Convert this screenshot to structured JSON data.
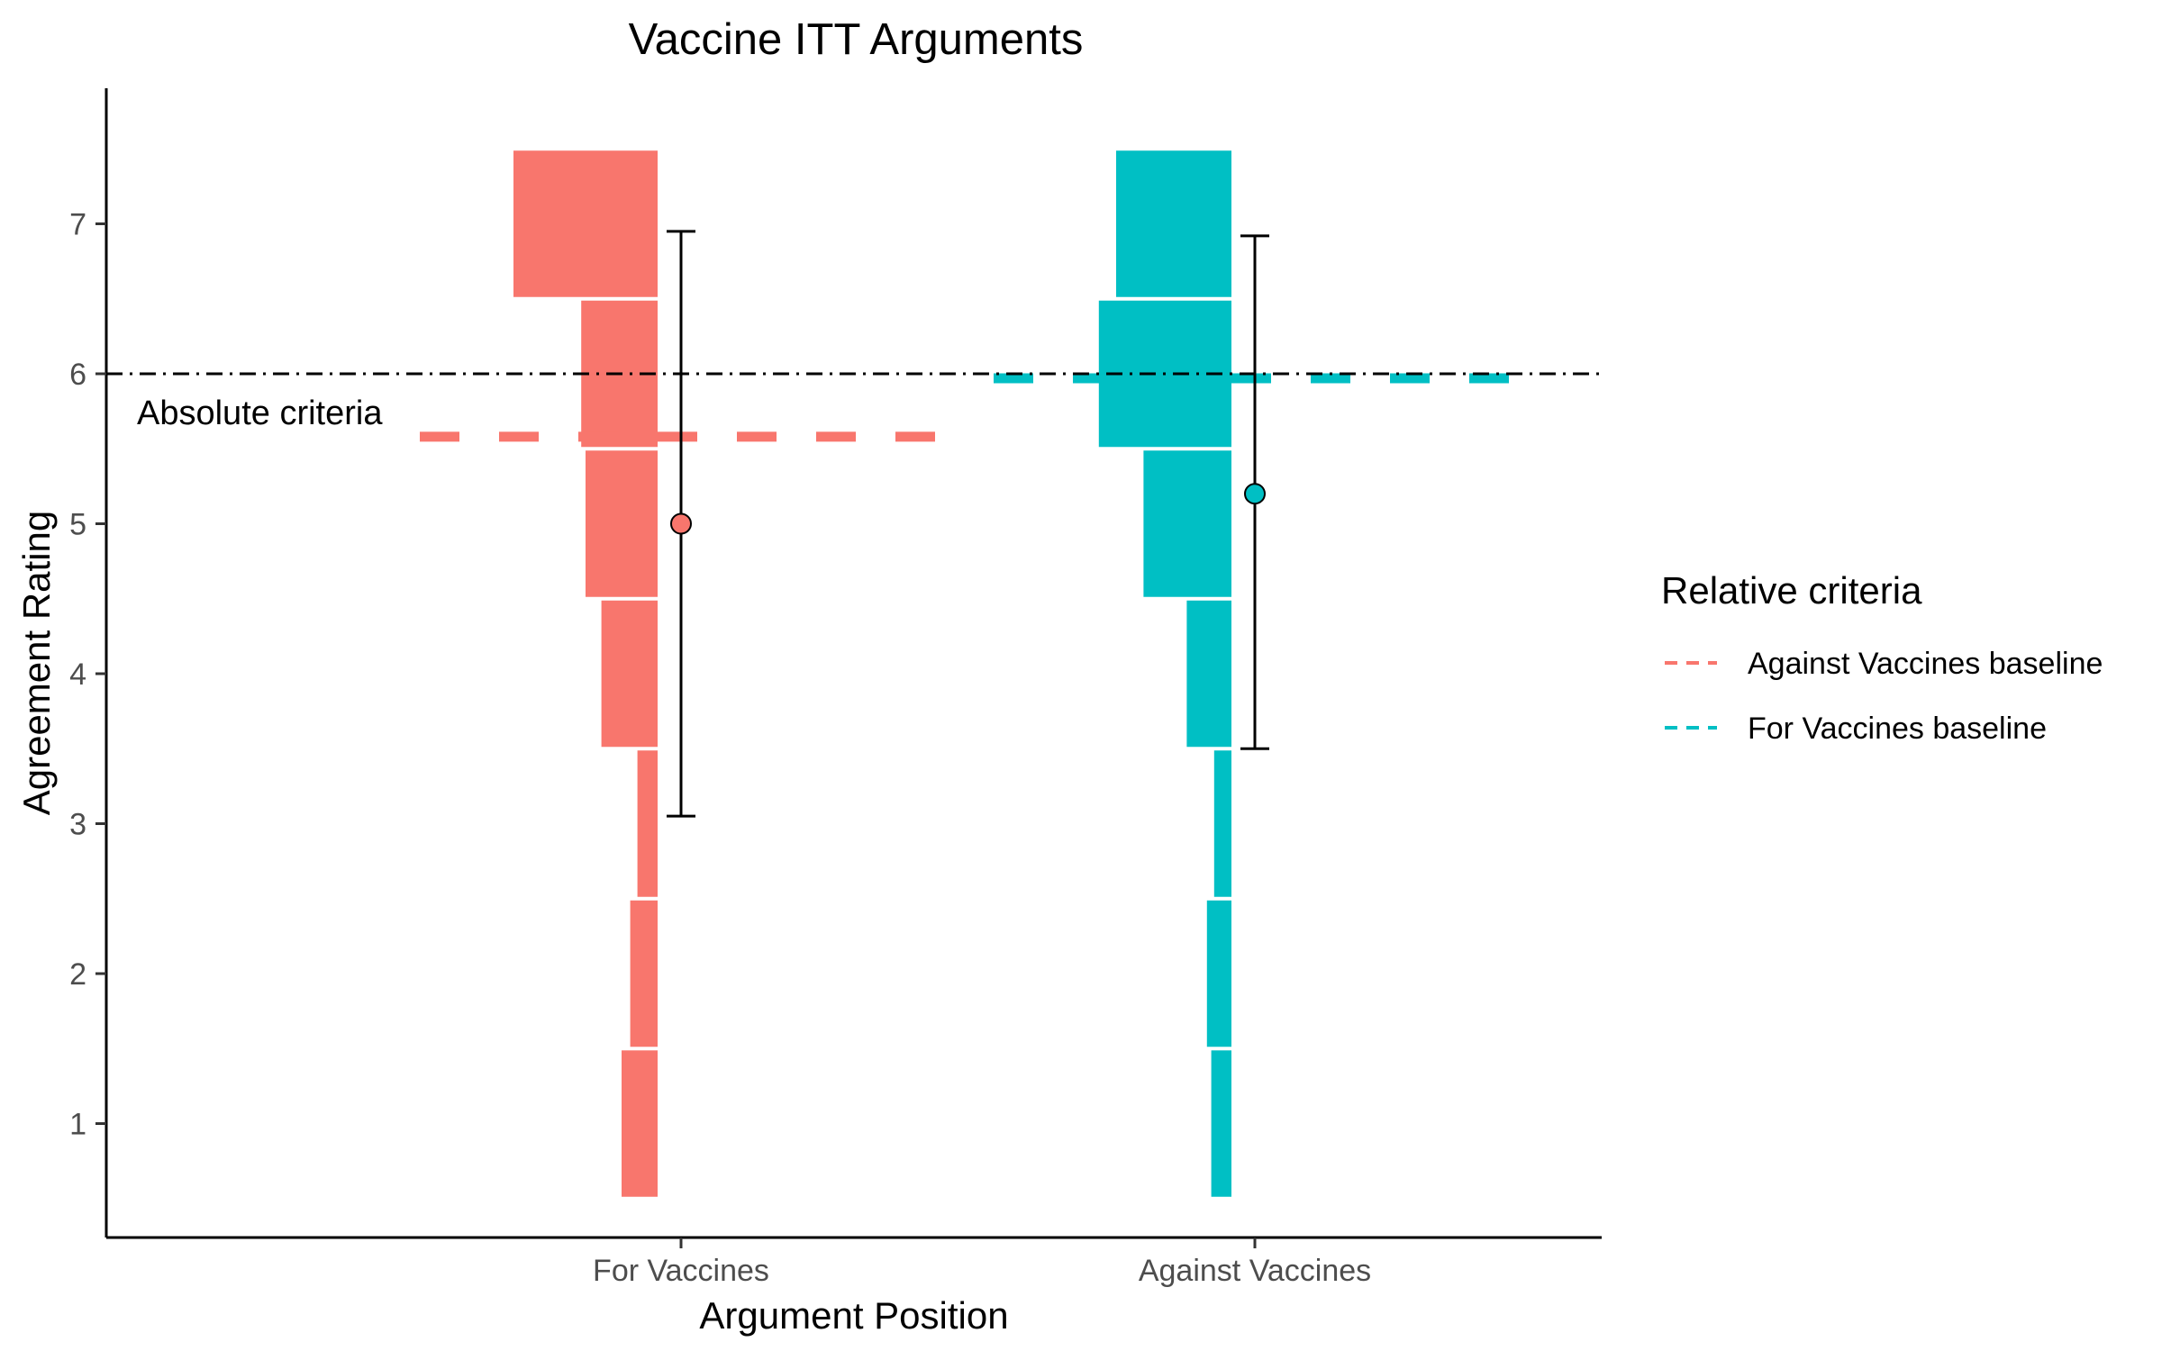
{
  "chart_data": {
    "type": "bar",
    "title": "Vaccine ITT Arguments",
    "xlabel": "Argument Position",
    "ylabel": "Agreement Rating",
    "categories": [
      "For Vaccines",
      "Against Vaccines"
    ],
    "ylim": [
      0.3,
      7.85
    ],
    "yticks": [
      1,
      2,
      3,
      4,
      5,
      6,
      7
    ],
    "grid": false,
    "distributions": [
      {
        "category": "For Vaccines",
        "color": "#F8766D",
        "ratings": [
          1,
          2,
          3,
          4,
          5,
          6,
          7
        ],
        "relative_widths": [
          0.25,
          0.19,
          0.14,
          0.39,
          0.5,
          0.53,
          1.0
        ],
        "mean": 5.0,
        "error_low": 3.05,
        "error_high": 6.95
      },
      {
        "category": "Against Vaccines",
        "color": "#00BFC4",
        "ratings": [
          1,
          2,
          3,
          4,
          5,
          6,
          7
        ],
        "relative_widths": [
          0.14,
          0.17,
          0.12,
          0.31,
          0.61,
          0.92,
          0.8
        ],
        "mean": 5.2,
        "error_low": 3.5,
        "error_high": 6.92
      }
    ],
    "reference_lines": [
      {
        "kind": "absolute",
        "label": "Absolute criteria",
        "value": 6.0,
        "style": "dotdash",
        "color": "#000000"
      }
    ],
    "baselines": [
      {
        "name": "Against Vaccines baseline",
        "value": 5.58,
        "applies_to": "For Vaccines",
        "color": "#F8766D"
      },
      {
        "name": "For Vaccines baseline",
        "value": 5.97,
        "applies_to": "Against Vaccines",
        "color": "#00BFC4"
      }
    ],
    "legend": {
      "title": "Relative criteria",
      "position": "right",
      "entries": [
        "Against Vaccines baseline",
        "For Vaccines baseline"
      ]
    }
  }
}
